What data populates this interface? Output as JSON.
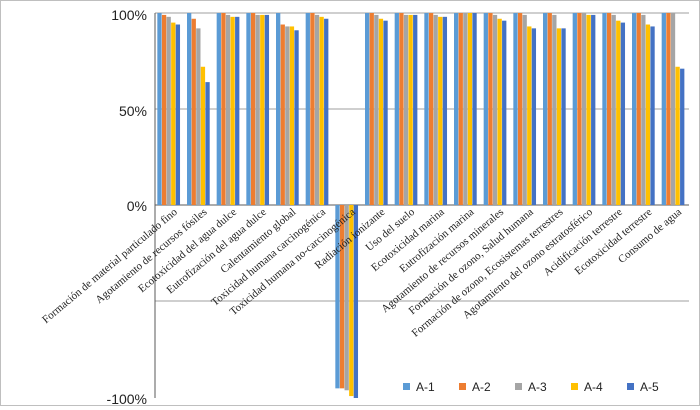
{
  "chart_data": {
    "type": "bar",
    "title": "",
    "xlabel": "",
    "ylabel": "",
    "ylim": [
      -100,
      100
    ],
    "y_ticks": [
      "100%",
      "50%",
      "0%",
      "-100%"
    ],
    "y_tick_values": [
      100,
      50,
      0,
      -100
    ],
    "grid": true,
    "legend_position": "bottom-right",
    "categories": [
      "Formación de material particulado fino",
      "Agotamiento de recursos fósiles",
      "Ecotoxicidad del agua dulce",
      "Eutrofización del agua dulce",
      "Calentamiento global",
      "Toxicidad humana carcinogénica",
      "Toxicidad humana no-carcinogénica",
      "Radiación ionizante",
      "Uso del suelo",
      "Ecotoxicidad marina",
      "Eutrofización marina",
      "Agotamiento de recursos minerales",
      "Formación de ozono, Salud humana",
      "Formación de ozono, Ecosistemas terrestres",
      "Agotamiento del ozono estratosférico",
      "Acidificación terrestre",
      "Ecotoxicidad terrestre",
      "Consumo de agua"
    ],
    "series": [
      {
        "name": "A-1",
        "color": "#5b9bd5",
        "values": [
          100,
          100,
          100,
          100,
          100,
          100,
          -95,
          100,
          100,
          100,
          100,
          100,
          100,
          100,
          100,
          100,
          100,
          100
        ]
      },
      {
        "name": "A-2",
        "color": "#ed7d31",
        "values": [
          99,
          97,
          100,
          100,
          94,
          100,
          -95,
          100,
          100,
          100,
          100,
          100,
          100,
          100,
          100,
          100,
          100,
          100
        ]
      },
      {
        "name": "A-3",
        "color": "#a5a5a5",
        "values": [
          98,
          92,
          99,
          99,
          93,
          99,
          -96,
          99,
          99,
          99,
          100,
          99,
          99,
          99,
          100,
          99,
          99,
          100
        ]
      },
      {
        "name": "A-4",
        "color": "#ffc000",
        "values": [
          95,
          72,
          98,
          99,
          93,
          98,
          -99,
          97,
          99,
          98,
          100,
          97,
          93,
          92,
          99,
          96,
          94,
          72
        ]
      },
      {
        "name": "A-5",
        "color": "#4472c4",
        "values": [
          94,
          64,
          98,
          99,
          91,
          97,
          -100,
          96,
          99,
          98,
          100,
          96,
          92,
          92,
          99,
          95,
          93,
          71
        ]
      }
    ]
  }
}
